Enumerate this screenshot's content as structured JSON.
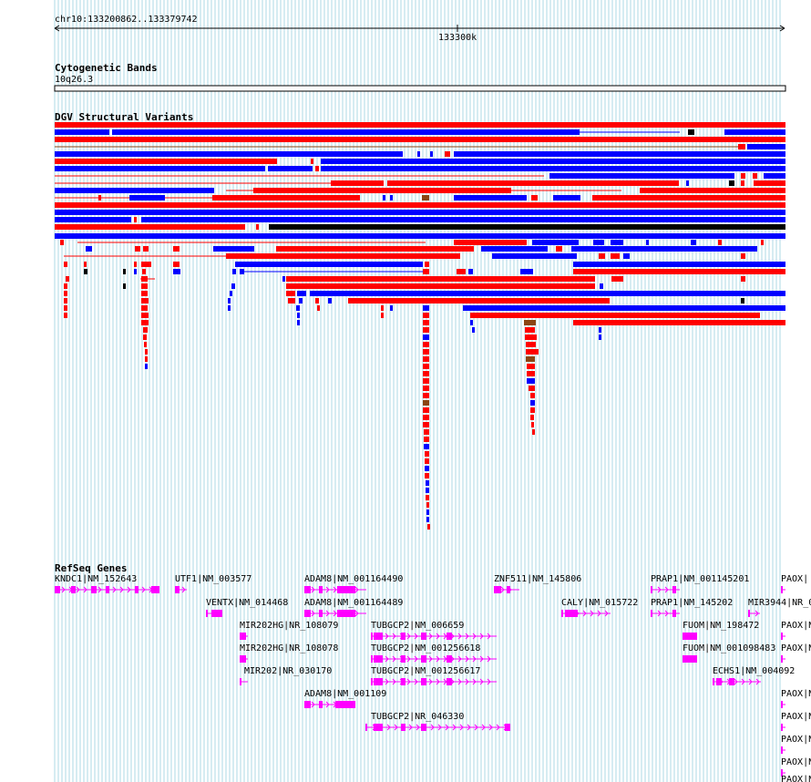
{
  "ruler": {
    "locus": "chr10:133200862..133379742",
    "tick_label": "133300k"
  },
  "tracks": {
    "cyto": {
      "title": "Cytogenetic Bands",
      "band": "10q26.3"
    },
    "dgv": {
      "title": "DGV Structural Variants"
    },
    "refseq": {
      "title": "RefSeq Genes"
    }
  },
  "colors": {
    "gain": "#ff0000",
    "loss": "#0000ff",
    "both": "#8b4513",
    "inversion": "#000000",
    "gene": "#ff00ff",
    "grid": "#add8e6"
  },
  "genes": [
    {
      "label": "KNDC1|NM_152643"
    },
    {
      "label": "UTF1|NM_003577"
    },
    {
      "label": "ADAM8|NM_001164490"
    },
    {
      "label": "ZNF511|NM_145806"
    },
    {
      "label": "PRAP1|NM_001145201"
    },
    {
      "label": "PAOX|"
    },
    {
      "label": "VENTX|NM_014468"
    },
    {
      "label": "ADAM8|NM_001164489"
    },
    {
      "label": "CALY|NM_015722"
    },
    {
      "label": "PRAP1|NM_145202"
    },
    {
      "label": "MIR3944|NR_0"
    },
    {
      "label": "MIR202HG|NR_108079"
    },
    {
      "label": "TUBGCP2|NM_006659"
    },
    {
      "label": "FUOM|NM_198472"
    },
    {
      "label": "PAOX|N"
    },
    {
      "label": "MIR202HG|NR_108078"
    },
    {
      "label": "TUBGCP2|NM_001256618"
    },
    {
      "label": "FUOM|NM_001098483"
    },
    {
      "label": "PAOX|N"
    },
    {
      "label": "MIR202|NR_030170"
    },
    {
      "label": "TUBGCP2|NM_001256617"
    },
    {
      "label": "ECHS1|NM_004092"
    },
    {
      "label": "PAOX|N"
    },
    {
      "label": "ADAM8|NM_001109"
    },
    {
      "label": "PAOX|N"
    },
    {
      "label": "TUBGCP2|NR_046330"
    },
    {
      "label": "PAOX|N"
    },
    {
      "label": "PAOX|N"
    },
    {
      "label": "PAOX|N"
    }
  ]
}
